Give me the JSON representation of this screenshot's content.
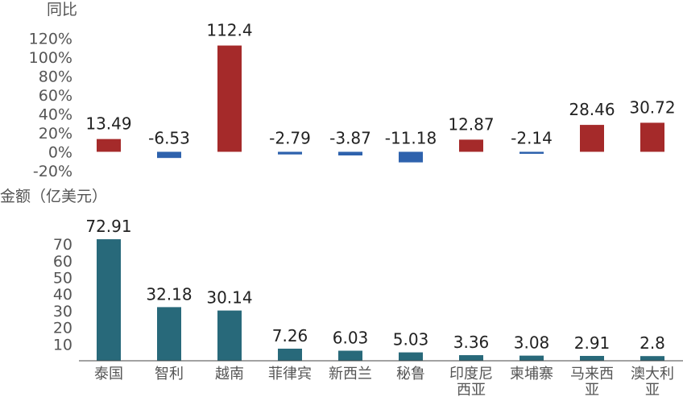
{
  "categories": [
    [
      "泰国"
    ],
    [
      "智利"
    ],
    [
      "越南"
    ],
    [
      "菲律宾"
    ],
    [
      "新西兰"
    ],
    [
      "秘鲁"
    ],
    [
      "印度尼",
      "西亚"
    ],
    [
      "柬埔寨"
    ],
    [
      "马来西",
      "亚"
    ],
    [
      "澳大利",
      "亚"
    ]
  ],
  "chart_data": [
    {
      "type": "bar",
      "ylabel": "同比",
      "yticks": [
        "120%",
        "100%",
        "80%",
        "60%",
        "40%",
        "20%",
        "0%",
        "-20%"
      ],
      "ylim": [
        -20,
        120
      ],
      "values": [
        13.49,
        -6.53,
        112.4,
        -2.79,
        -3.87,
        -11.18,
        12.87,
        -2.14,
        28.46,
        30.72
      ],
      "data_labels": [
        "13.49",
        "-6.53",
        "112.4",
        "-2.79",
        "-3.87",
        "-11.18",
        "12.87",
        "-2.14",
        "28.46",
        "30.72"
      ],
      "colors": {
        "positive": "#a52a2a",
        "negative": "#2e62ad"
      },
      "grid": false
    },
    {
      "type": "bar",
      "ylabel": "金额（亿美元）",
      "yticks": [
        "70",
        "60",
        "50",
        "40",
        "30",
        "20",
        "10"
      ],
      "ylim": [
        0,
        75
      ],
      "values": [
        72.91,
        32.18,
        30.14,
        7.26,
        6.03,
        5.03,
        3.36,
        3.08,
        2.91,
        2.8
      ],
      "data_labels": [
        "72.91",
        "32.18",
        "30.14",
        "7.26",
        "6.03",
        "5.03",
        "3.36",
        "3.08",
        "2.91",
        "2.8"
      ],
      "colors": {
        "bar": "#28697a"
      },
      "grid": false
    }
  ]
}
